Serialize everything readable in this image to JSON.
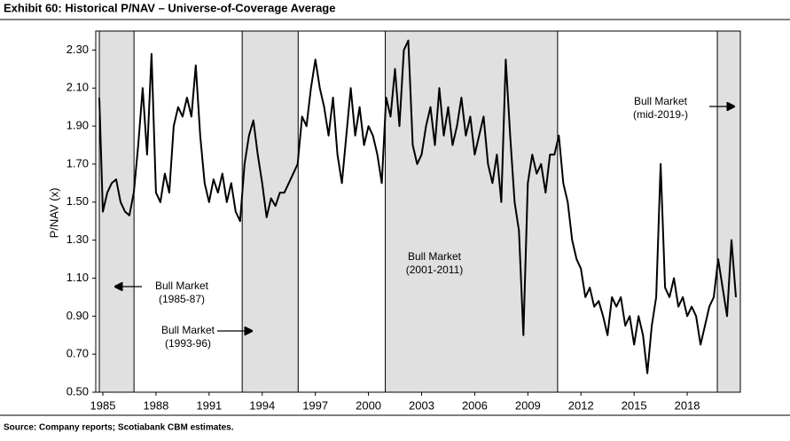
{
  "chart_data": {
    "type": "line",
    "title": "Exhibit 60: Historical P/NAV – Universe-of-Coverage Average",
    "y_label": "P/NAV (x)",
    "source": "Source: Company reports; Scotiabank CBM estimates.",
    "xlim": [
      1984.6,
      2021.0
    ],
    "xticks": [
      1985,
      1988,
      1991,
      1994,
      1997,
      2000,
      2003,
      2006,
      2009,
      2012,
      2015,
      2018
    ],
    "ylim": [
      0.5,
      2.4
    ],
    "yticks": [
      {
        "value": 0.5,
        "label": "0.50"
      },
      {
        "value": 0.7,
        "label": "0.70"
      },
      {
        "value": 0.9,
        "label": "0.90"
      },
      {
        "value": 1.1,
        "label": "1.10"
      },
      {
        "value": 1.3,
        "label": "1.30"
      },
      {
        "value": 1.5,
        "label": "1.50"
      },
      {
        "value": 1.7,
        "label": "1.70"
      },
      {
        "value": 1.9,
        "label": "1.90"
      },
      {
        "value": 2.1,
        "label": "2.10"
      },
      {
        "value": 2.3,
        "label": "2.30"
      }
    ],
    "bull_markets": [
      [
        1984.8,
        1986.76
      ],
      [
        1992.87,
        1996.03
      ],
      [
        2000.95,
        2010.68
      ],
      [
        2019.7,
        2021.0
      ]
    ],
    "shade_color": "#e0e0e0",
    "annotations": [
      {
        "lines": [
          "Bull Market",
          "(1985-87)"
        ]
      },
      {
        "lines": [
          "Bull Market",
          "(1993-96)"
        ]
      },
      {
        "lines": [
          "Bull Market",
          "(2001-2011)"
        ]
      },
      {
        "lines": [
          "Bull Market",
          "(mid-2019-)"
        ]
      }
    ],
    "series": [
      {
        "color": "#000000",
        "x": [
          1984.8,
          1985.0,
          1985.25,
          1985.5,
          1985.75,
          1986.0,
          1986.25,
          1986.5,
          1986.75,
          1987.0,
          1987.25,
          1987.5,
          1987.75,
          1988.0,
          1988.25,
          1988.5,
          1988.75,
          1989.0,
          1989.25,
          1989.5,
          1989.75,
          1990.0,
          1990.25,
          1990.5,
          1990.75,
          1991.0,
          1991.25,
          1991.5,
          1991.75,
          1992.0,
          1992.25,
          1992.5,
          1992.75,
          1993.0,
          1993.25,
          1993.5,
          1993.75,
          1994.0,
          1994.25,
          1994.5,
          1994.75,
          1995.0,
          1995.25,
          1995.5,
          1995.75,
          1996.0,
          1996.25,
          1996.5,
          1996.75,
          1997.0,
          1997.25,
          1997.5,
          1997.75,
          1998.0,
          1998.25,
          1998.5,
          1998.75,
          1999.0,
          1999.25,
          1999.5,
          1999.75,
          2000.0,
          2000.25,
          2000.5,
          2000.75,
          2001.0,
          2001.25,
          2001.5,
          2001.75,
          2002.0,
          2002.25,
          2002.5,
          2002.75,
          2003.0,
          2003.25,
          2003.5,
          2003.75,
          2004.0,
          2004.25,
          2004.5,
          2004.75,
          2005.0,
          2005.25,
          2005.5,
          2005.75,
          2006.0,
          2006.25,
          2006.5,
          2006.75,
          2007.0,
          2007.25,
          2007.5,
          2007.75,
          2008.0,
          2008.25,
          2008.5,
          2008.75,
          2009.0,
          2009.25,
          2009.5,
          2009.75,
          2010.0,
          2010.25,
          2010.5,
          2010.75,
          2011.0,
          2011.25,
          2011.5,
          2011.75,
          2012.0,
          2012.25,
          2012.5,
          2012.75,
          2013.0,
          2013.25,
          2013.5,
          2013.75,
          2014.0,
          2014.25,
          2014.5,
          2014.75,
          2015.0,
          2015.25,
          2015.5,
          2015.75,
          2016.0,
          2016.25,
          2016.5,
          2016.75,
          2017.0,
          2017.25,
          2017.5,
          2017.75,
          2018.0,
          2018.25,
          2018.5,
          2018.75,
          2019.0,
          2019.25,
          2019.5,
          2019.75,
          2020.0,
          2020.25,
          2020.5,
          2020.75
        ],
        "values": [
          2.05,
          1.45,
          1.55,
          1.6,
          1.62,
          1.5,
          1.45,
          1.43,
          1.55,
          1.8,
          2.1,
          1.75,
          2.28,
          1.55,
          1.5,
          1.65,
          1.55,
          1.9,
          2.0,
          1.95,
          2.05,
          1.95,
          2.22,
          1.85,
          1.6,
          1.5,
          1.62,
          1.55,
          1.65,
          1.5,
          1.6,
          1.45,
          1.4,
          1.7,
          1.85,
          1.93,
          1.75,
          1.6,
          1.42,
          1.52,
          1.48,
          1.55,
          1.55,
          1.6,
          1.65,
          1.7,
          1.95,
          1.9,
          2.1,
          2.25,
          2.1,
          2.0,
          1.85,
          2.05,
          1.75,
          1.6,
          1.85,
          2.1,
          1.85,
          2.0,
          1.8,
          1.9,
          1.85,
          1.75,
          1.6,
          2.05,
          1.95,
          2.2,
          1.9,
          2.3,
          2.35,
          1.8,
          1.7,
          1.75,
          1.9,
          2.0,
          1.8,
          2.1,
          1.85,
          2.0,
          1.8,
          1.9,
          2.05,
          1.85,
          1.95,
          1.75,
          1.85,
          1.95,
          1.7,
          1.6,
          1.75,
          1.5,
          2.25,
          1.85,
          1.5,
          1.35,
          0.8,
          1.6,
          1.75,
          1.65,
          1.7,
          1.55,
          1.75,
          1.75,
          1.85,
          1.6,
          1.5,
          1.3,
          1.2,
          1.15,
          1.0,
          1.05,
          0.95,
          0.98,
          0.9,
          0.8,
          1.0,
          0.95,
          1.0,
          0.85,
          0.9,
          0.75,
          0.9,
          0.8,
          0.6,
          0.85,
          1.0,
          1.7,
          1.05,
          1.0,
          1.1,
          0.95,
          1.0,
          0.9,
          0.95,
          0.9,
          0.75,
          0.85,
          0.95,
          1.0,
          1.2,
          1.05,
          0.9,
          1.3,
          1.0
        ]
      }
    ]
  }
}
